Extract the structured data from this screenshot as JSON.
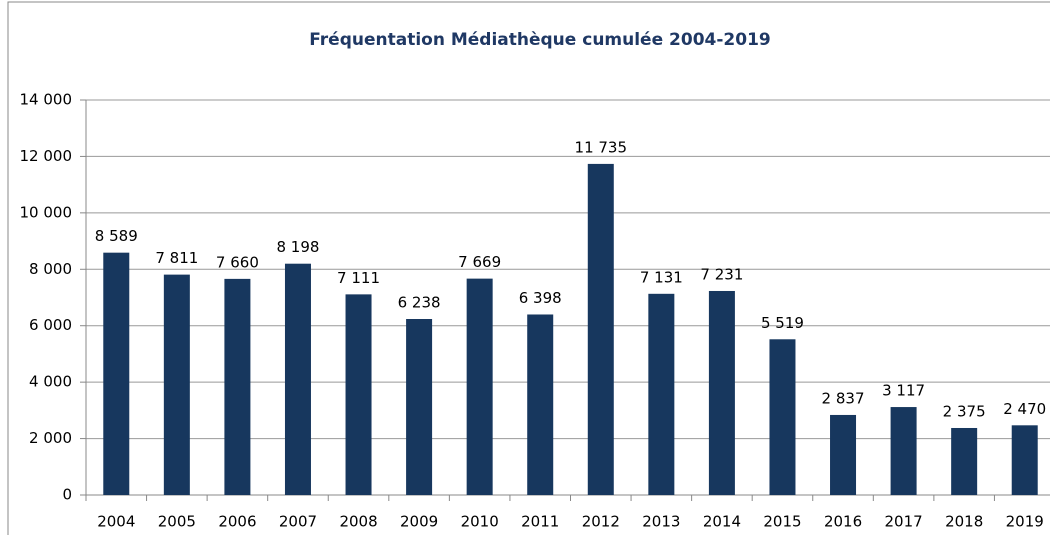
{
  "chart_data": {
    "type": "bar",
    "title": "Fréquentation Médiathèque cumulée 2004-2019",
    "categories": [
      "2004",
      "2005",
      "2006",
      "2007",
      "2008",
      "2009",
      "2010",
      "2011",
      "2012",
      "2013",
      "2014",
      "2015",
      "2016",
      "2017",
      "2018",
      "2019"
    ],
    "values": [
      8589,
      7811,
      7660,
      8198,
      7111,
      6238,
      7669,
      6398,
      11735,
      7131,
      7231,
      5519,
      2837,
      3117,
      2375,
      2470
    ],
    "value_labels": [
      "8 589",
      "7 811",
      "7 660",
      "8 198",
      "7 111",
      "6 238",
      "7 669",
      "6 398",
      "11 735",
      "7 131",
      "7 231",
      "5 519",
      "2 837",
      "3 117",
      "2 375",
      "2 470"
    ],
    "color": "#17375e",
    "ylim": [
      0,
      14000
    ],
    "yticks": [
      0,
      {
        "value": 2000,
        "label": "2 000"
      },
      {
        "value": 4000,
        "label": "4 000"
      },
      {
        "value": 6000,
        "label": "6 000"
      },
      {
        "value": 8000,
        "label": "8 000"
      },
      {
        "value": 10000,
        "label": "10 000"
      },
      {
        "value": 12000,
        "label": "12 000"
      },
      {
        "value": 14000,
        "label": "14 000"
      }
    ],
    "grid": true
  }
}
